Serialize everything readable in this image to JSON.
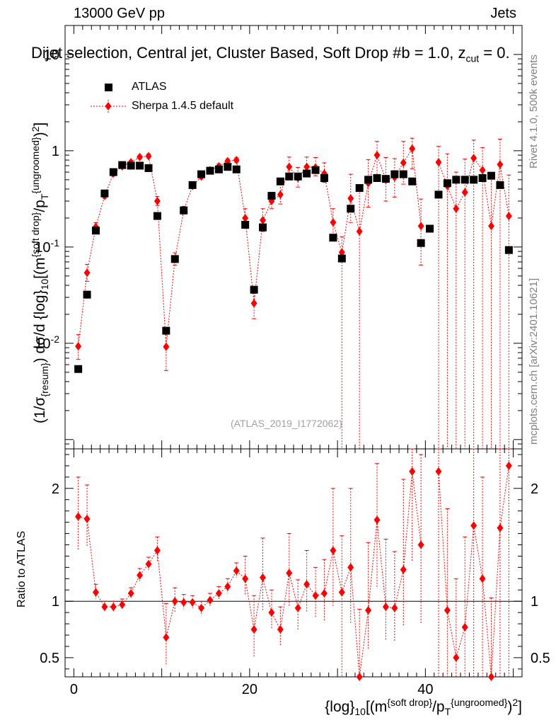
{
  "header": {
    "left": "13000 GeV pp",
    "right": "Jets",
    "side_top": "Rivet 4.1.0,  500k events",
    "side_bottom": "mcplots.cern.ch [arXiv:2401.10621]"
  },
  "chart_data": {
    "type": "scatter",
    "title": "Dijet selection, Central jet, Cluster Based, Soft Drop #b = 1.0, z_cut = 0.",
    "watermark": "(ATLAS_2019_I1772062)",
    "xlabel": "{log}_10[(m^{soft drop}/p_T^{ungroomed})^2]",
    "ylabel": "(1/σ_{resum}) dσ/d {log}_10[(m^{soft drop}/p_T^{ungroomed})^2]",
    "ratio_ylabel": "Ratio to ATLAS",
    "legend": [
      "ATLAS",
      "Sherpa 1.4.5 default"
    ],
    "xlim": [
      -1,
      51
    ],
    "ylim": [
      0.0008,
      20
    ],
    "yscale": "log",
    "ratio_ylim": [
      0.33,
      2.35
    ],
    "x_ticks": [
      0,
      20,
      40
    ],
    "y_ticks": [
      "10^-2",
      "10^-1",
      "1",
      "10"
    ],
    "ratio_ticks": [
      "0.5",
      "1",
      "2"
    ],
    "series": [
      {
        "name": "ATLAS",
        "x": [
          0.5,
          1.5,
          2.5,
          3.5,
          4.5,
          5.5,
          6.5,
          7.5,
          8.5,
          9.5,
          10.5,
          11.5,
          12.5,
          13.5,
          14.5,
          15.5,
          16.5,
          17.5,
          18.5,
          19.5,
          20.5,
          21.5,
          22.5,
          23.5,
          24.5,
          25.5,
          26.5,
          27.5,
          28.5,
          29.5,
          30.5,
          31.5,
          32.5,
          33.5,
          34.5,
          35.5,
          36.5,
          37.5,
          38.5,
          39.5,
          40.5,
          41.5,
          42.5,
          43.5,
          44.5,
          45.5,
          46.5,
          47.5,
          48.5,
          49.5
        ],
        "values": [
          0.0054,
          0.032,
          0.148,
          0.36,
          0.6,
          0.71,
          0.7,
          0.7,
          0.66,
          0.21,
          0.0135,
          0.075,
          0.24,
          0.44,
          0.57,
          0.62,
          0.64,
          0.68,
          0.64,
          0.17,
          0.036,
          0.16,
          0.34,
          0.48,
          0.54,
          0.54,
          0.58,
          0.63,
          0.52,
          0.125,
          0.076,
          0.25,
          0.41,
          0.5,
          0.52,
          0.51,
          0.57,
          0.57,
          0.48,
          0.11,
          0.155,
          0.35,
          0.46,
          0.5,
          0.5,
          0.5,
          0.52,
          0.55,
          0.44,
          0.093
        ]
      },
      {
        "name": "Sherpa 1.4.5 default",
        "x": [
          0.5,
          1.5,
          2.5,
          3.5,
          4.5,
          5.5,
          6.5,
          7.5,
          8.5,
          9.5,
          10.5,
          11.5,
          12.5,
          13.5,
          14.5,
          15.5,
          16.5,
          17.5,
          18.5,
          19.5,
          20.5,
          21.5,
          22.5,
          23.5,
          24.5,
          25.5,
          26.5,
          27.5,
          28.5,
          29.5,
          30.5,
          31.5,
          32.5,
          33.5,
          34.5,
          35.5,
          36.5,
          37.5,
          38.5,
          39.5,
          40.5,
          41.5,
          42.5,
          43.5,
          44.5,
          45.5,
          46.5,
          47.5,
          48.5,
          49.5
        ],
        "values": [
          0.0093,
          0.054,
          0.162,
          0.34,
          0.58,
          0.69,
          0.76,
          0.86,
          0.88,
          0.3,
          0.0092,
          0.075,
          0.24,
          0.43,
          0.54,
          0.63,
          0.69,
          0.78,
          0.8,
          0.2,
          0.026,
          0.19,
          0.3,
          0.35,
          0.68,
          0.52,
          0.68,
          0.67,
          0.58,
          0.18,
          0.088,
          0.32,
          0.145,
          0.46,
          0.9,
          0.5,
          0.53,
          0.75,
          1.05,
          0.165,
          null,
          0.76,
          0.43,
          0.25,
          0.37,
          0.84,
          0.63,
          0.165,
          0.72,
          0.21
        ],
        "err_low": [
          0.0025,
          0.01,
          0.015,
          0.02,
          0.03,
          0.03,
          0.03,
          0.035,
          0.04,
          0.03,
          0.004,
          0.01,
          0.02,
          0.025,
          0.03,
          0.03,
          0.035,
          0.04,
          0.04,
          0.04,
          0.008,
          0.045,
          0.05,
          0.07,
          0.12,
          0.1,
          0.12,
          0.12,
          0.11,
          0.05,
          0.088,
          0.14,
          0.145,
          0.2,
          0.35,
          0.2,
          0.2,
          0.3,
          0.4,
          0.1,
          null,
          0.76,
          0.43,
          0.25,
          0.37,
          0.84,
          0.63,
          0.165,
          0.72,
          0.21
        ],
        "err_high": [
          0.003,
          0.012,
          0.017,
          0.022,
          0.035,
          0.035,
          0.035,
          0.04,
          0.045,
          0.035,
          0.004,
          0.012,
          0.025,
          0.03,
          0.035,
          0.035,
          0.04,
          0.045,
          0.045,
          0.05,
          0.01,
          0.06,
          0.07,
          0.1,
          0.18,
          0.15,
          0.18,
          0.18,
          0.17,
          0.07,
          0.04,
          0.25,
          0.25,
          0.35,
          0.35,
          0.35,
          0.3,
          0.5,
          0.3,
          0.15,
          null,
          0.35,
          0.5,
          0.35,
          0.45,
          0.45,
          0.45,
          0.4,
          0.6,
          0.35
        ]
      }
    ],
    "ratio": {
      "x": [
        0.5,
        1.5,
        2.5,
        3.5,
        4.5,
        5.5,
        6.5,
        7.5,
        8.5,
        9.5,
        10.5,
        11.5,
        12.5,
        13.5,
        14.5,
        15.5,
        16.5,
        17.5,
        18.5,
        19.5,
        20.5,
        21.5,
        22.5,
        23.5,
        24.5,
        25.5,
        26.5,
        27.5,
        28.5,
        29.5,
        30.5,
        31.5,
        32.5,
        33.5,
        34.5,
        35.5,
        36.5,
        37.5,
        38.5,
        39.5,
        40.5,
        41.5,
        42.5,
        43.5,
        44.5,
        45.5,
        46.5,
        47.5,
        48.5,
        49.5
      ],
      "values": [
        1.75,
        1.73,
        1.08,
        0.95,
        0.95,
        0.97,
        1.07,
        1.23,
        1.33,
        1.45,
        0.68,
        1.0,
        0.99,
        0.99,
        0.94,
        1.01,
        1.07,
        1.13,
        1.27,
        1.2,
        0.75,
        1.21,
        0.9,
        0.75,
        1.25,
        0.94,
        1.15,
        1.05,
        1.07,
        1.45,
        1.08,
        1.3,
        0.33,
        0.92,
        1.72,
        0.95,
        0.94,
        1.28,
        2.15,
        1.5,
        null,
        2.15,
        0.92,
        0.5,
        0.77,
        1.67,
        1.2,
        0.33,
        1.65,
        2.2
      ],
      "err_low": [
        0.3,
        0.25,
        0.06,
        0.05,
        0.04,
        0.04,
        0.04,
        0.05,
        0.05,
        0.1,
        0.25,
        0.1,
        0.06,
        0.05,
        0.05,
        0.05,
        0.05,
        0.06,
        0.06,
        0.15,
        0.25,
        0.3,
        0.15,
        0.15,
        0.3,
        0.2,
        0.25,
        0.2,
        0.25,
        0.5,
        1.08,
        0.5,
        0.33,
        0.35,
        0.6,
        0.3,
        0.3,
        0.5,
        0.8,
        0.7,
        null,
        2.0,
        0.9,
        0.5,
        0.77,
        1.6,
        1.2,
        0.33,
        1.6,
        2.0
      ],
      "err_high": [
        0.35,
        0.3,
        0.07,
        0.05,
        0.05,
        0.05,
        0.05,
        0.06,
        0.06,
        0.12,
        0.3,
        0.12,
        0.07,
        0.06,
        0.06,
        0.06,
        0.06,
        0.07,
        0.07,
        0.2,
        0.3,
        0.35,
        0.2,
        0.2,
        0.35,
        0.25,
        0.3,
        0.25,
        0.3,
        0.55,
        0.5,
        0.7,
        0.6,
        0.6,
        0.5,
        0.6,
        0.5,
        0.8,
        0.5,
        0.8,
        null,
        0.5,
        0.9,
        0.7,
        0.8,
        0.8,
        0.9,
        0.7,
        0.9,
        0.5
      ]
    }
  },
  "colors": {
    "data": "#000000",
    "mc": "#ff0000",
    "watermark": "#a0a0a0",
    "side": "#808080"
  }
}
